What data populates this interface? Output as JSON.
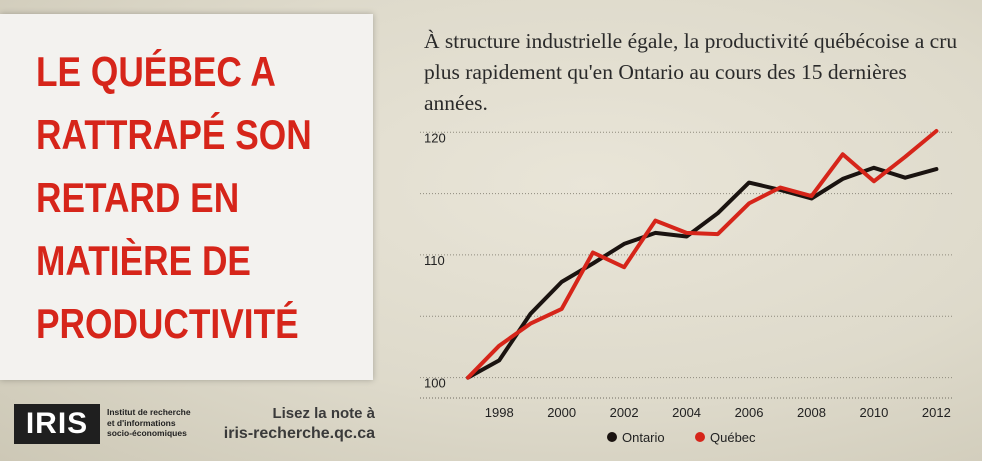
{
  "headline": "LE QUÉBEC A\nRATTRAPÉ SON\nRETARD EN\nMATIÈRE DE\nPRODUCTIVITÉ",
  "logo": "IRIS",
  "institute_lines": [
    "Institut de recherche",
    "et d'informations",
    "socio-économiques"
  ],
  "note": {
    "line1": "Lisez la note à",
    "line2": "iris-recherche.qc.ca"
  },
  "colors": {
    "ontario": "#1a1310",
    "quebec": "#d6251a",
    "headline": "#d6251a"
  },
  "chart_data": {
    "type": "line",
    "title": "À structure industrielle égale, la productivité québécoise a cru plus rapidement qu'en Ontario au cours des 15 dernières années.",
    "xlabel": "",
    "ylabel": "",
    "x": [
      1997,
      1998,
      1999,
      2000,
      2001,
      2002,
      2003,
      2004,
      2005,
      2006,
      2007,
      2008,
      2009,
      2010,
      2011,
      2012
    ],
    "xticks": [
      1998,
      2000,
      2002,
      2004,
      2006,
      2008,
      2010,
      2012
    ],
    "yticks": [
      100,
      110,
      120
    ],
    "xlim": [
      1997,
      2012.5
    ],
    "ylim": [
      98.5,
      121
    ],
    "grid": "horizontal",
    "legend": "bottom",
    "series": [
      {
        "name": "Ontario",
        "color": "#1a1310",
        "values": [
          100,
          101.4,
          105.2,
          107.8,
          109.3,
          110.9,
          111.8,
          111.5,
          113.4,
          115.9,
          115.3,
          114.6,
          116.2,
          117.1,
          116.3,
          117.0
        ]
      },
      {
        "name": "Québec",
        "color": "#d6251a",
        "values": [
          100,
          102.6,
          104.4,
          105.6,
          110.2,
          109.0,
          112.8,
          111.8,
          111.7,
          114.2,
          115.5,
          114.8,
          118.2,
          116.0,
          118.0,
          120.1
        ]
      }
    ]
  }
}
